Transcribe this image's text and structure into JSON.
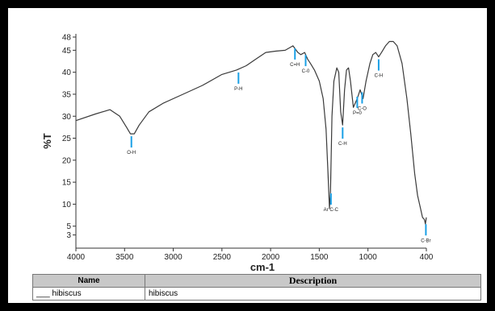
{
  "chart_data": {
    "type": "line",
    "title": "",
    "xlabel": "cm-1",
    "ylabel": "%T",
    "xlim": [
      4000,
      400
    ],
    "ylim": [
      0,
      48
    ],
    "x_ticks": [
      "4000",
      "3500",
      "3000",
      "2500",
      "2000",
      "1500",
      "1000",
      "400"
    ],
    "x_tick_values": [
      4000,
      3500,
      3000,
      2500,
      2000,
      1500,
      1000,
      400
    ],
    "y_ticks": [
      "3",
      "5",
      "10",
      "15",
      "20",
      "25",
      "30",
      "35",
      "40",
      "45",
      "48"
    ],
    "y_tick_values": [
      3,
      5,
      10,
      15,
      20,
      25,
      30,
      35,
      40,
      45,
      48
    ],
    "grid": false,
    "series": [
      {
        "x": [
          4000,
          3800,
          3650,
          3550,
          3480,
          3440,
          3400,
          3350,
          3250,
          3100,
          2900,
          2700,
          2500,
          2350,
          2250,
          2150,
          2050,
          1950,
          1850,
          1770,
          1720,
          1690,
          1650,
          1620,
          1590,
          1550,
          1500,
          1460,
          1430,
          1410,
          1395,
          1385,
          1370,
          1350,
          1320,
          1300,
          1280,
          1260,
          1240,
          1220,
          1200,
          1180,
          1150,
          1110,
          1080,
          1050,
          1020,
          1000,
          980,
          950,
          920,
          890,
          860,
          820,
          780,
          740,
          700,
          650,
          600,
          560,
          520,
          490,
          460,
          440,
          420,
          410,
          400
        ],
        "y": [
          29,
          30.5,
          31.5,
          30,
          27.5,
          26,
          26,
          28,
          31,
          33,
          35,
          37,
          39.5,
          40.5,
          41.5,
          43,
          44.5,
          44.8,
          45,
          46,
          44.5,
          44,
          44.5,
          43,
          42,
          40.5,
          38,
          34,
          27,
          17,
          9,
          13,
          30,
          38,
          41,
          40,
          31,
          28,
          36,
          40.5,
          41,
          38,
          32,
          34,
          36,
          34,
          38,
          40,
          42,
          44,
          44.5,
          43.5,
          44.5,
          46,
          47,
          47,
          46,
          42,
          34,
          26,
          17,
          12,
          9,
          7,
          6.5,
          5.5,
          7
        ]
      }
    ],
    "annotations": [
      {
        "text": "O-H",
        "x": 3430,
        "y": 26
      },
      {
        "text": "P-H",
        "x": 2330,
        "y": 40.5
      },
      {
        "text": "C=H",
        "x": 1750,
        "y": 46
      },
      {
        "text": "C-0",
        "x": 1640,
        "y": 44.5
      },
      {
        "text": "Ar C-C",
        "x": 1380,
        "y": 13
      },
      {
        "text": "C-H",
        "x": 1260,
        "y": 28
      },
      {
        "text": "P=0",
        "x": 1110,
        "y": 35
      },
      {
        "text": "C-O",
        "x": 1060,
        "y": 36
      },
      {
        "text": "C-H",
        "x": 890,
        "y": 43.5
      },
      {
        "text": "C-Br",
        "x": 405,
        "y": 6
      }
    ],
    "colors": {
      "line": "#3a3a3a",
      "marker": "#1aa0e6"
    }
  },
  "table": {
    "headers": {
      "name": "Name",
      "description": "Description"
    },
    "row": {
      "name": "___ hibiscus",
      "description": "hibiscus"
    }
  }
}
